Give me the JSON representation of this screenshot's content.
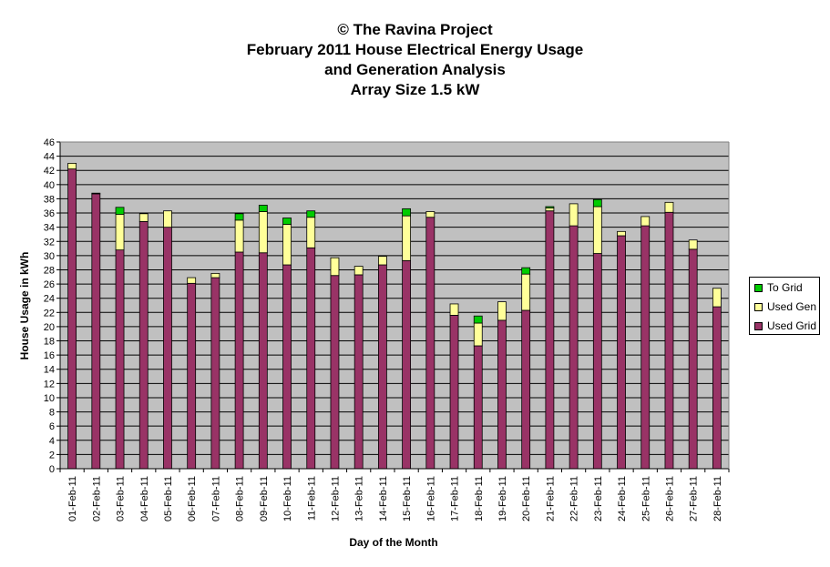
{
  "title_lines": [
    "© The Ravina Project",
    "February 2011 House Electrical Energy Usage",
    "and Generation Analysis",
    "Array Size 1.5 kW"
  ],
  "chart_data": {
    "type": "bar",
    "stacked": true,
    "xlabel": "Day of the Month",
    "ylabel": "House Usage in kWh",
    "ylim": [
      0,
      46
    ],
    "ytick_step": 2,
    "grid": true,
    "legend_position": "right",
    "categories": [
      "01-Feb-11",
      "02-Feb-11",
      "03-Feb-11",
      "04-Feb-11",
      "05-Feb-11",
      "06-Feb-11",
      "07-Feb-11",
      "08-Feb-11",
      "09-Feb-11",
      "10-Feb-11",
      "11-Feb-11",
      "12-Feb-11",
      "13-Feb-11",
      "14-Feb-11",
      "15-Feb-11",
      "16-Feb-11",
      "17-Feb-11",
      "18-Feb-11",
      "19-Feb-11",
      "20-Feb-11",
      "21-Feb-11",
      "22-Feb-11",
      "23-Feb-11",
      "24-Feb-11",
      "25-Feb-11",
      "26-Feb-11",
      "27-Feb-11",
      "28-Feb-11"
    ],
    "series": [
      {
        "name": "Used Grid",
        "color": "#993366",
        "values": [
          42.2,
          38.7,
          30.8,
          34.8,
          34.0,
          26.1,
          26.9,
          30.5,
          30.4,
          28.7,
          31.1,
          27.2,
          27.3,
          28.7,
          29.3,
          35.4,
          21.6,
          17.3,
          20.9,
          22.3,
          36.3,
          34.2,
          30.3,
          32.8,
          34.2,
          36.1,
          30.9,
          22.8
        ]
      },
      {
        "name": "Used Gen",
        "color": "#FFFF99",
        "values": [
          0.8,
          0.1,
          5.0,
          1.1,
          2.3,
          0.8,
          0.6,
          4.5,
          5.8,
          5.7,
          4.3,
          2.5,
          1.2,
          1.2,
          6.3,
          0.8,
          1.6,
          3.2,
          2.6,
          5.1,
          0.4,
          3.1,
          6.6,
          0.6,
          1.3,
          1.4,
          1.3,
          2.6
        ]
      },
      {
        "name": "To Grid",
        "color": "#00CC00",
        "values": [
          0,
          0,
          1.0,
          0,
          0,
          0,
          0,
          0.9,
          0.9,
          0.9,
          0.9,
          0,
          0,
          0,
          1.0,
          0,
          0,
          1.0,
          0,
          0.9,
          0.2,
          0,
          1.0,
          0,
          0,
          0,
          0,
          0
        ]
      }
    ]
  },
  "legend": {
    "items": [
      {
        "label": "To Grid",
        "color": "#00CC00"
      },
      {
        "label": "Used Gen",
        "color": "#FFFF99"
      },
      {
        "label": "Used Grid",
        "color": "#993366"
      }
    ]
  }
}
